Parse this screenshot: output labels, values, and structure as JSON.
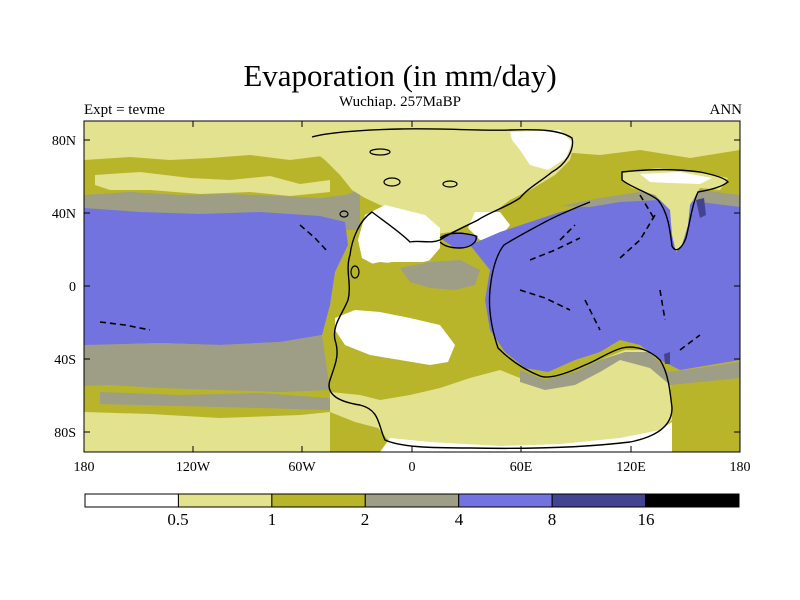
{
  "title": "Evaporation (in mm/day)",
  "subtitle": "Wuchiap. 257MaBP",
  "left_label": "Expt = tevme",
  "right_label": "ANN",
  "lat_ticks": [
    "80N",
    "40N",
    "0",
    "40S",
    "80S"
  ],
  "lon_ticks": [
    "180",
    "120W",
    "60W",
    "0",
    "60E",
    "120E",
    "180"
  ],
  "colorbar": {
    "labels": [
      "0.5",
      "1",
      "2",
      "4",
      "8",
      "16"
    ],
    "colors": [
      "#ffffff",
      "#e3e28f",
      "#b8b52b",
      "#9e9d86",
      "#7373e0",
      "#43448f",
      "#000000"
    ]
  },
  "palette": {
    "white": "#ffffff",
    "pale": "#e3e28f",
    "olive": "#b8b52b",
    "gray": "#9e9d86",
    "blue": "#7373e0",
    "navy": "#43448f"
  }
}
